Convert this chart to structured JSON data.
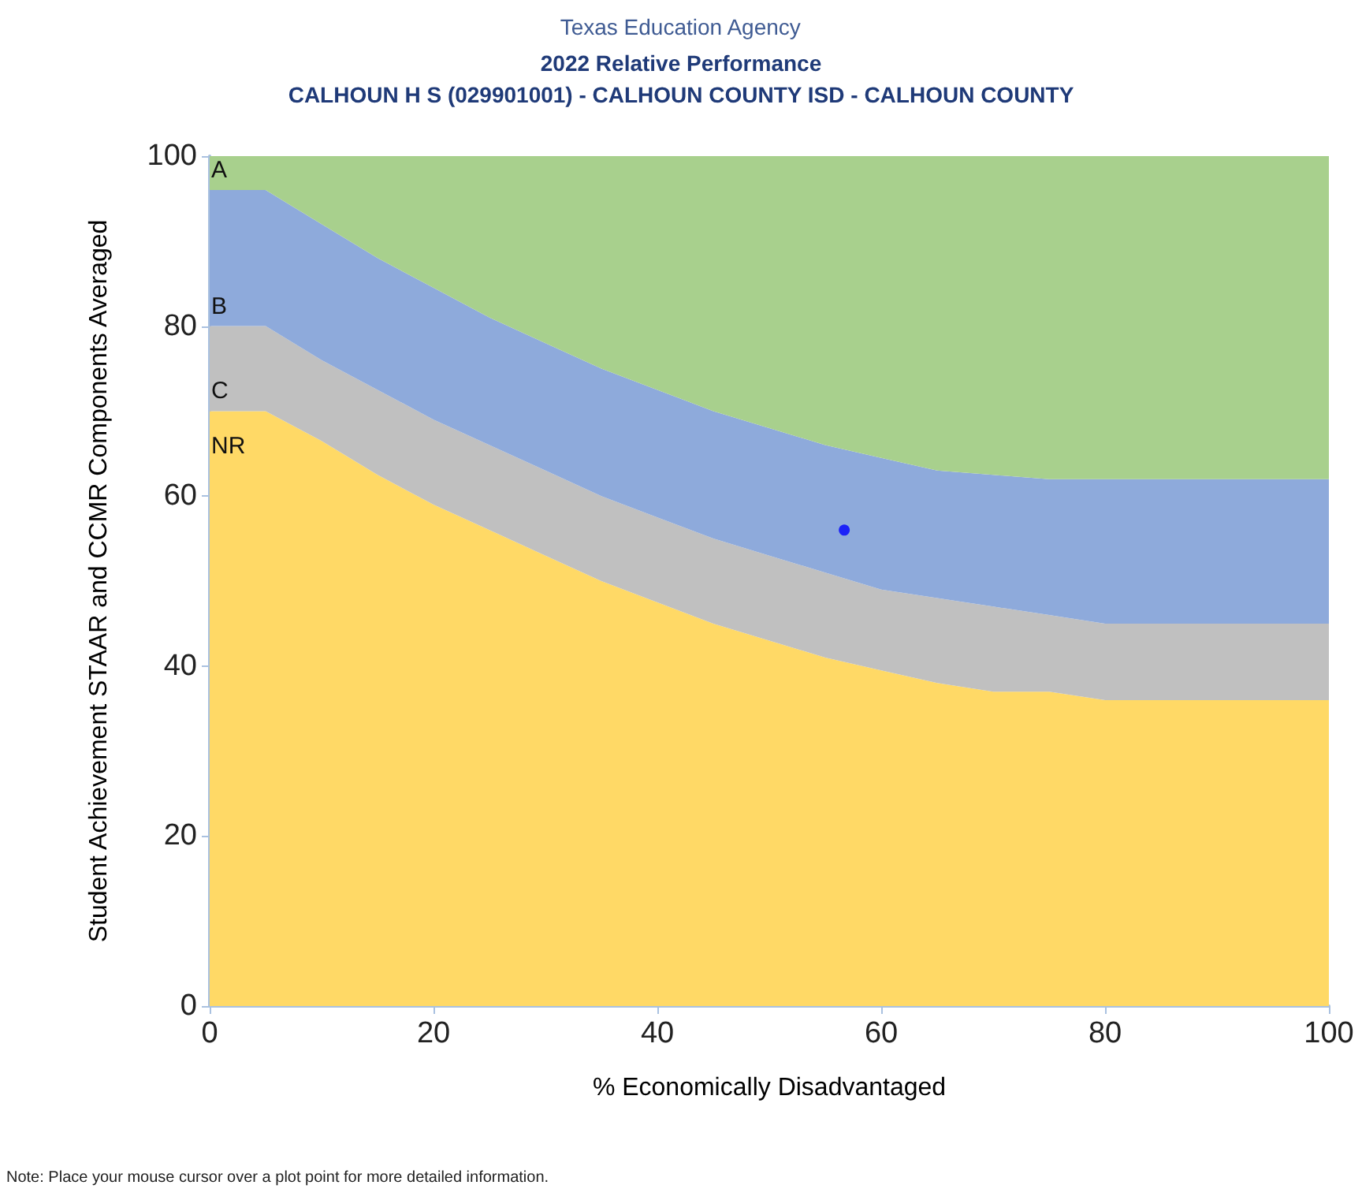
{
  "chart_data": {
    "type": "area",
    "title": "2022 Relative Performance",
    "subtitle": "CALHOUN H S (029901001) - CALHOUN COUNTY ISD - CALHOUN COUNTY",
    "xlabel": "% Economically Disadvantaged",
    "ylabel": "Student Achievement STAAR and CCMR Components Averaged",
    "annotations": [
      "Texas Education Agency",
      "Note: Place your mouse cursor over a plot point for more detailed information."
    ],
    "x": [
      0,
      5,
      10,
      15,
      20,
      25,
      30,
      35,
      40,
      45,
      50,
      55,
      60,
      65,
      70,
      75,
      80,
      85,
      90,
      95,
      100
    ],
    "stacked": true,
    "series": [
      {
        "name": "NR",
        "color": "#ffd966",
        "values": [
          70,
          70,
          66.5,
          62.5,
          59,
          56,
          53,
          50,
          47.5,
          45,
          43,
          41,
          39.5,
          38,
          37,
          37,
          36,
          36,
          36,
          36,
          36
        ]
      },
      {
        "name": "C",
        "color": "#c0c0c0",
        "values": [
          10,
          10,
          9.5,
          10,
          10,
          10,
          10,
          10,
          10,
          10,
          10,
          10,
          9.5,
          10,
          10,
          9,
          9,
          9,
          9,
          9,
          9
        ]
      },
      {
        "name": "B",
        "color": "#8eaadb",
        "values": [
          16,
          16,
          16,
          15.5,
          15.5,
          15,
          15,
          15,
          15,
          15,
          15,
          15,
          15.5,
          15,
          15.5,
          16,
          17,
          17,
          17,
          17,
          17
        ]
      },
      {
        "name": "A",
        "color": "#a8d08d",
        "values": [
          4,
          4,
          8,
          12,
          15.5,
          19,
          22,
          25,
          27.5,
          30,
          32,
          34,
          35.5,
          37,
          37.5,
          38,
          38,
          38,
          38,
          38,
          38
        ]
      },
      {
        "type": "scatter",
        "color": "#0000ff",
        "x": [
          56.7
        ],
        "values": [
          56
        ],
        "marker": "circle"
      }
    ],
    "xlim": [
      0,
      100
    ],
    "xticks": [
      0,
      20,
      40,
      60,
      80,
      100
    ],
    "ylim": [
      0,
      100
    ],
    "yticks": [
      0,
      20,
      40,
      60,
      80,
      100
    ],
    "grid": false,
    "legend": false
  }
}
